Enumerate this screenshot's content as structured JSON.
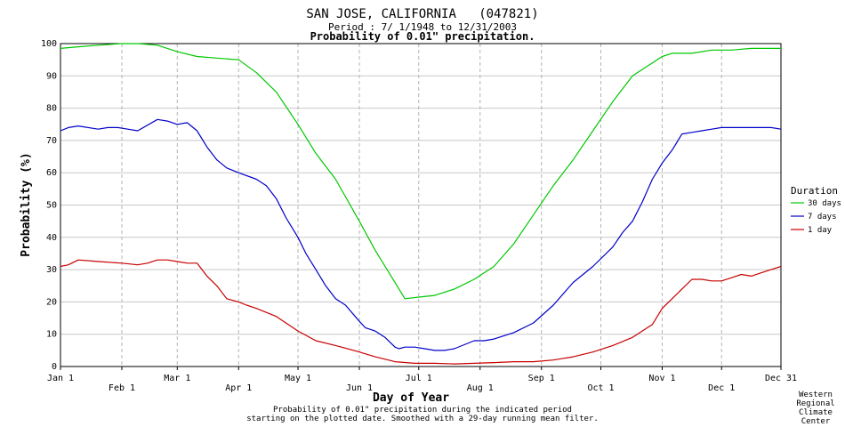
{
  "header": {
    "title": "SAN JOSE, CALIFORNIA   (047821)",
    "period": "Period : 7/ 1/1948 to 12/31/2003",
    "subtitle": "Probability of 0.01\" precipitation."
  },
  "footnote": {
    "line1": "Probability of 0.01\" precipitation during the indicated period",
    "line2": "starting on the plotted date. Smoothed with a 29-day running mean filter."
  },
  "credit": [
    "Western",
    "Regional",
    "Climate",
    "Center"
  ],
  "chart_data": {
    "type": "line",
    "xlabel": "Day of Year",
    "ylabel": "Probability (%)",
    "ylim": [
      0,
      100
    ],
    "xlim": [
      1,
      365
    ],
    "grid": true,
    "legend_position": "right",
    "legend_title": "Duration",
    "y_ticks": [
      "0",
      "10",
      "20",
      "30",
      "40",
      "50",
      "60",
      "70",
      "80",
      "90",
      "100"
    ],
    "x_ticks": [
      {
        "label": "Jan 1",
        "day": 1,
        "row": 1
      },
      {
        "label": "Feb 1",
        "day": 32,
        "row": 2
      },
      {
        "label": "Mar 1",
        "day": 60,
        "row": 1
      },
      {
        "label": "Apr 1",
        "day": 91,
        "row": 2
      },
      {
        "label": "May 1",
        "day": 121,
        "row": 1
      },
      {
        "label": "Jun 1",
        "day": 152,
        "row": 2
      },
      {
        "label": "Jul 1",
        "day": 182,
        "row": 1
      },
      {
        "label": "Aug 1",
        "day": 213,
        "row": 2
      },
      {
        "label": "Sep 1",
        "day": 244,
        "row": 1
      },
      {
        "label": "Oct 1",
        "day": 274,
        "row": 2
      },
      {
        "label": "Nov 1",
        "day": 305,
        "row": 1
      },
      {
        "label": "Dec 1",
        "day": 335,
        "row": 2
      },
      {
        "label": "Dec 31",
        "day": 365,
        "row": 1
      }
    ],
    "series": [
      {
        "name": "30 days",
        "color": "#00c800",
        "x": [
          1,
          10,
          20,
          32,
          40,
          50,
          55,
          60,
          70,
          80,
          91,
          100,
          110,
          121,
          130,
          140,
          152,
          160,
          170,
          175,
          182,
          190,
          200,
          210,
          220,
          230,
          240,
          250,
          260,
          270,
          280,
          290,
          300,
          305,
          310,
          320,
          330,
          340,
          350,
          365
        ],
        "y": [
          98.5,
          99,
          99.5,
          100,
          100,
          99.5,
          98.5,
          97.5,
          96,
          95.5,
          95,
          91,
          85,
          75,
          66,
          58,
          45,
          36,
          26,
          21,
          21.5,
          22,
          24,
          27,
          31,
          38,
          47,
          56,
          64,
          73,
          82,
          90,
          94,
          96,
          97,
          97,
          98,
          98,
          98.5,
          98.5
        ]
      },
      {
        "name": "7 days",
        "color": "#0000c8",
        "x": [
          1,
          5,
          10,
          20,
          25,
          30,
          35,
          40,
          50,
          55,
          60,
          65,
          70,
          75,
          80,
          85,
          91,
          100,
          105,
          110,
          115,
          121,
          125,
          130,
          135,
          140,
          145,
          152,
          155,
          160,
          165,
          170,
          172,
          175,
          180,
          185,
          190,
          195,
          200,
          210,
          215,
          220,
          230,
          240,
          250,
          260,
          270,
          280,
          285,
          290,
          295,
          300,
          305,
          310,
          315,
          320,
          325,
          330,
          335,
          340,
          345,
          350,
          355,
          360,
          365
        ],
        "y": [
          73,
          74,
          74.5,
          73.5,
          74,
          74,
          73.5,
          73,
          76.5,
          76,
          75,
          75.5,
          73,
          68,
          64,
          61.5,
          60,
          58,
          56,
          52,
          46,
          40,
          35,
          30,
          25,
          21,
          19,
          14,
          12,
          11,
          9,
          6,
          5.5,
          6,
          6,
          5.5,
          5,
          5,
          5.5,
          8,
          8,
          8.5,
          10.5,
          13.5,
          19,
          26,
          31,
          37,
          41.5,
          45,
          51,
          58,
          63,
          67,
          72,
          72.5,
          73,
          73.5,
          74,
          74,
          74,
          74,
          74,
          74,
          73.5
        ]
      },
      {
        "name": "1 day",
        "color": "#c80000",
        "x": [
          1,
          5,
          10,
          20,
          32,
          40,
          45,
          50,
          55,
          60,
          65,
          70,
          75,
          80,
          85,
          91,
          95,
          100,
          110,
          121,
          130,
          140,
          152,
          160,
          170,
          180,
          190,
          200,
          210,
          220,
          230,
          240,
          250,
          260,
          270,
          280,
          290,
          300,
          305,
          310,
          315,
          320,
          325,
          330,
          335,
          340,
          345,
          350,
          355,
          360,
          365
        ],
        "y": [
          31,
          31.5,
          33,
          32.5,
          32,
          31.5,
          32,
          33,
          33,
          32.5,
          32,
          32,
          28,
          25,
          21,
          20,
          19,
          18,
          15.5,
          11,
          8,
          6.5,
          4.5,
          3,
          1.5,
          1,
          1,
          0.8,
          1,
          1.2,
          1.5,
          1.5,
          2,
          3,
          4.5,
          6.5,
          9,
          13,
          18,
          21,
          24,
          27,
          27,
          26.5,
          26.5,
          27.5,
          28.5,
          28,
          29,
          30,
          31
        ]
      }
    ]
  }
}
